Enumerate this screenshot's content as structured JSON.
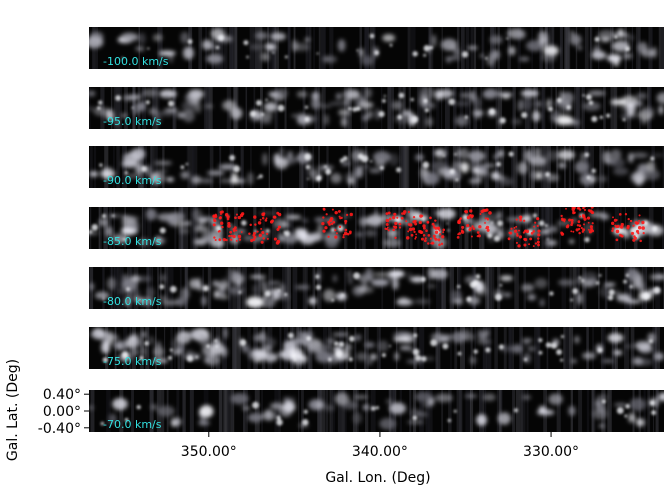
{
  "chart_data": {
    "type": "heatmap",
    "xlabel": "Gal. Lon. (Deg)",
    "ylabel": "Gal. Lat. (Deg)",
    "x_tick_labels": [
      "350.00°",
      "340.00°",
      "330.00°"
    ],
    "x_ticks": [
      350,
      340,
      330
    ],
    "xlim": [
      357.0,
      323.4
    ],
    "y_tick_labels": [
      "0.40°",
      "0.00°",
      "-0.40°"
    ],
    "y_ticks": [
      0.4,
      0.0,
      -0.4
    ],
    "ylim": [
      -0.5,
      0.5
    ],
    "colormap": "grayscale",
    "panels": [
      {
        "velocity_label": "-100.0 km/s",
        "velocity": -100.0,
        "has_overlay": false
      },
      {
        "velocity_label": "-95.0 km/s",
        "velocity": -95.0,
        "has_overlay": false
      },
      {
        "velocity_label": "-90.0 km/s",
        "velocity": -90.0,
        "has_overlay": false
      },
      {
        "velocity_label": "-85.0 km/s",
        "velocity": -85.0,
        "has_overlay": true
      },
      {
        "velocity_label": "-80.0 km/s",
        "velocity": -80.0,
        "has_overlay": false
      },
      {
        "velocity_label": "-75.0 km/s",
        "velocity": -75.0,
        "has_overlay": false
      },
      {
        "velocity_label": "-70.0 km/s",
        "velocity": -70.0,
        "has_overlay": false
      }
    ],
    "overlay_color": "#ff1a1a",
    "label_color": "#33e0e0"
  }
}
